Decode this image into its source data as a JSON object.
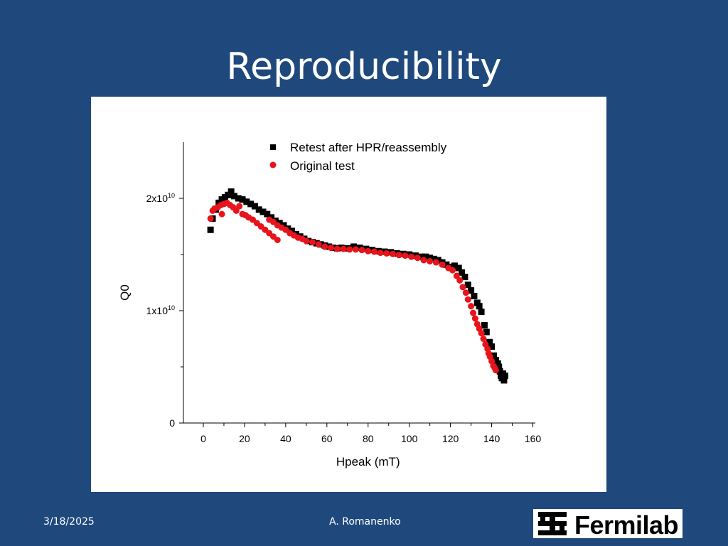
{
  "slide": {
    "title": "Reproducibility",
    "date": "3/18/2025",
    "author": "A. Romanenko",
    "logo_text": "Fermilab"
  },
  "colors": {
    "background": "#1f497d",
    "series_retest": "#000000",
    "series_original": "#e8141b"
  },
  "chart_data": {
    "type": "scatter",
    "xlabel": "Hpeak (mT)",
    "ylabel": "Q0",
    "xlim": [
      -10,
      160
    ],
    "ylim": [
      0,
      25000000000.0
    ],
    "xticks": [
      0,
      20,
      40,
      60,
      80,
      100,
      120,
      140,
      160
    ],
    "yticks": [
      {
        "value": 0,
        "base": "0",
        "exp": ""
      },
      {
        "value": 10000000000.0,
        "base": "1x10",
        "exp": "10"
      },
      {
        "value": 20000000000.0,
        "base": "2x10",
        "exp": "10"
      }
    ],
    "legend_position": "top-right",
    "grid": false,
    "series": [
      {
        "name": "Retest after HPR/reassembly",
        "marker": "square",
        "points": [
          [
            3.5,
            17200000000.0
          ],
          [
            4.5,
            18200000000.0
          ],
          [
            6,
            19000000000.0
          ],
          [
            7.5,
            19600000000.0
          ],
          [
            9,
            19900000000.0
          ],
          [
            10.5,
            20100000000.0
          ],
          [
            12,
            20300000000.0
          ],
          [
            13.5,
            20600000000.0
          ],
          [
            15,
            20200000000.0
          ],
          [
            17,
            20000000000.0
          ],
          [
            19,
            19900000000.0
          ],
          [
            21,
            19700000000.0
          ],
          [
            23,
            19500000000.0
          ],
          [
            25,
            19300000000.0
          ],
          [
            27,
            19000000000.0
          ],
          [
            29,
            18800000000.0
          ],
          [
            31,
            18600000000.0
          ],
          [
            33,
            18300000000.0
          ],
          [
            35,
            18000000000.0
          ],
          [
            37,
            17800000000.0
          ],
          [
            39,
            17600000000.0
          ],
          [
            41,
            17300000000.0
          ],
          [
            43,
            17100000000.0
          ],
          [
            45,
            16800000000.0
          ],
          [
            47,
            16600000000.0
          ],
          [
            49,
            16400000000.0
          ],
          [
            51,
            16200000000.0
          ],
          [
            53,
            16100000000.0
          ],
          [
            55,
            16000000000.0
          ],
          [
            57,
            15900000000.0
          ],
          [
            59,
            15800000000.0
          ],
          [
            61,
            15700000000.0
          ],
          [
            63,
            15600000000.0
          ],
          [
            65,
            15550000000.0
          ],
          [
            67,
            15600000000.0
          ],
          [
            70,
            15550000000.0
          ],
          [
            73,
            15700000000.0
          ],
          [
            76,
            15600000000.0
          ],
          [
            79,
            15500000000.0
          ],
          [
            82,
            15400000000.0
          ],
          [
            85,
            15300000000.0
          ],
          [
            88,
            15250000000.0
          ],
          [
            91,
            15200000000.0
          ],
          [
            94,
            15100000000.0
          ],
          [
            97,
            15050000000.0
          ],
          [
            100,
            15000000000.0
          ],
          [
            103,
            14900000000.0
          ],
          [
            106,
            14800000000.0
          ],
          [
            108,
            14800000000.0
          ],
          [
            110,
            14700000000.0
          ],
          [
            112,
            14600000000.0
          ],
          [
            114,
            14500000000.0
          ],
          [
            116,
            14300000000.0
          ],
          [
            118,
            14100000000.0
          ],
          [
            120,
            13900000000.0
          ],
          [
            122,
            14000000000.0
          ],
          [
            124,
            13800000000.0
          ],
          [
            125.5,
            13400000000.0
          ],
          [
            127,
            13000000000.0
          ],
          [
            128.5,
            12300000000.0
          ],
          [
            130,
            11800000000.0
          ],
          [
            131.5,
            11300000000.0
          ],
          [
            133,
            10700000000.0
          ],
          [
            134,
            10400000000.0
          ],
          [
            135,
            9900000000.0
          ],
          [
            136.5,
            8700000000.0
          ],
          [
            137.5,
            8100000000.0
          ],
          [
            139,
            7200000000.0
          ],
          [
            140,
            6800000000.0
          ],
          [
            141,
            6000000000.0
          ],
          [
            142,
            5600000000.0
          ],
          [
            143,
            5300000000.0
          ],
          [
            143.5,
            5000000000.0
          ],
          [
            144,
            4600000000.0
          ],
          [
            144.5,
            4200000000.0
          ],
          [
            145,
            4000000000.0
          ],
          [
            145.5,
            4400000000.0
          ],
          [
            146,
            3800000000.0
          ],
          [
            146.5,
            4200000000.0
          ]
        ]
      },
      {
        "name": "Original test",
        "marker": "circle",
        "points": [
          [
            3.5,
            18200000000.0
          ],
          [
            4.5,
            18900000000.0
          ],
          [
            5.5,
            19100000000.0
          ],
          [
            7,
            19200000000.0
          ],
          [
            8.5,
            19400000000.0
          ],
          [
            9,
            18600000000.0
          ],
          [
            10,
            19500000000.0
          ],
          [
            11.5,
            19600000000.0
          ],
          [
            13,
            19400000000.0
          ],
          [
            14.5,
            19200000000.0
          ],
          [
            16,
            18900000000.0
          ],
          [
            17.5,
            19300000000.0
          ],
          [
            19,
            18600000000.0
          ],
          [
            20.5,
            18500000000.0
          ],
          [
            22,
            18300000000.0
          ],
          [
            24,
            18100000000.0
          ],
          [
            26,
            17800000000.0
          ],
          [
            28,
            17500000000.0
          ],
          [
            30,
            17200000000.0
          ],
          [
            32,
            16900000000.0
          ],
          [
            34,
            16600000000.0
          ],
          [
            36,
            16300000000.0
          ],
          [
            32,
            18100000000.0
          ],
          [
            34,
            17900000000.0
          ],
          [
            36,
            17600000000.0
          ],
          [
            38,
            17400000000.0
          ],
          [
            40,
            17200000000.0
          ],
          [
            42,
            16900000000.0
          ],
          [
            44,
            16700000000.0
          ],
          [
            46,
            16500000000.0
          ],
          [
            48,
            16400000000.0
          ],
          [
            50,
            16200000000.0
          ],
          [
            53,
            16100000000.0
          ],
          [
            56,
            15900000000.0
          ],
          [
            59,
            15700000000.0
          ],
          [
            62,
            15600000000.0
          ],
          [
            65,
            15500000000.0
          ],
          [
            68,
            15500000000.0
          ],
          [
            71,
            15450000000.0
          ],
          [
            74,
            15450000000.0
          ],
          [
            77,
            15400000000.0
          ],
          [
            80,
            15300000000.0
          ],
          [
            83,
            15250000000.0
          ],
          [
            86,
            15150000000.0
          ],
          [
            89,
            15100000000.0
          ],
          [
            92,
            15050000000.0
          ],
          [
            95,
            14950000000.0
          ],
          [
            98,
            14900000000.0
          ],
          [
            101,
            14800000000.0
          ],
          [
            104,
            14700000000.0
          ],
          [
            107,
            14500000000.0
          ],
          [
            110,
            14400000000.0
          ],
          [
            113,
            14300000000.0
          ],
          [
            116,
            14100000000.0
          ],
          [
            119,
            13800000000.0
          ],
          [
            121,
            13600000000.0
          ],
          [
            123,
            13100000000.0
          ],
          [
            124.5,
            12700000000.0
          ],
          [
            126,
            12100000000.0
          ],
          [
            127.5,
            11600000000.0
          ],
          [
            128.5,
            11000000000.0
          ],
          [
            130,
            10400000000.0
          ],
          [
            131,
            9800000000.0
          ],
          [
            132,
            9300000000.0
          ],
          [
            133,
            8800000000.0
          ],
          [
            134,
            8400000000.0
          ],
          [
            135,
            8000000000.0
          ],
          [
            136,
            7500000000.0
          ],
          [
            137,
            7000000000.0
          ],
          [
            138,
            6600000000.0
          ],
          [
            138.5,
            6200000000.0
          ],
          [
            139.2,
            5900000000.0
          ],
          [
            140,
            5500000000.0
          ],
          [
            140.8,
            5100000000.0
          ],
          [
            141.5,
            4900000000.0
          ],
          [
            142,
            4700000000.0
          ]
        ]
      }
    ]
  }
}
